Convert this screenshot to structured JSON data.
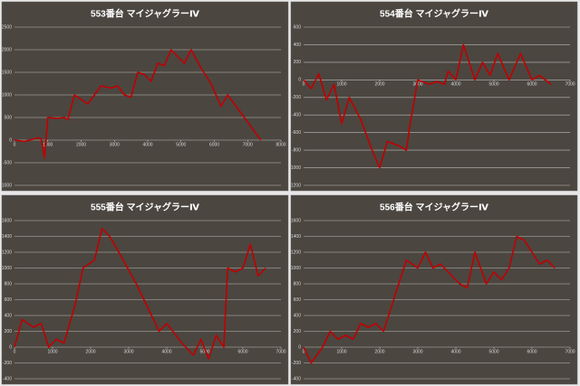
{
  "chart_data": [
    {
      "type": "line",
      "title": "553番台 マイジャグラーⅣ",
      "color": "#c00000",
      "grid": true,
      "x": [
        0,
        300,
        700,
        800,
        900,
        1000,
        1300,
        1500,
        1600,
        1800,
        2200,
        2600,
        2900,
        3100,
        3300,
        3500,
        3700,
        3900,
        4100,
        4300,
        4500,
        4700,
        5100,
        5300,
        5600,
        5900,
        6200,
        6400,
        6700,
        7000,
        7400
      ],
      "values": [
        0,
        -30,
        50,
        30,
        -400,
        500,
        480,
        500,
        450,
        1000,
        800,
        1200,
        1150,
        1200,
        1000,
        950,
        1500,
        1450,
        1300,
        1700,
        1650,
        2000,
        1700,
        2000,
        1600,
        1250,
        750,
        1000,
        700,
        400,
        0
      ],
      "xlim": [
        0,
        8000
      ],
      "xticks": [
        0,
        1000,
        2000,
        3000,
        4000,
        5000,
        6000,
        7000,
        8000
      ],
      "ylim": [
        -1000,
        2500
      ],
      "yticks": [
        -1000,
        -500,
        0,
        500,
        1000,
        1500,
        2000,
        2500
      ]
    },
    {
      "type": "line",
      "title": "554番台 マイジャグラーⅣ",
      "color": "#c00000",
      "grid": true,
      "x": [
        0,
        200,
        400,
        600,
        800,
        1000,
        1200,
        1500,
        1800,
        2000,
        2200,
        2500,
        2700,
        2800,
        3000,
        3300,
        3500,
        3700,
        3800,
        4000,
        4200,
        4500,
        4700,
        4900,
        5100,
        5400,
        5700,
        6000,
        6200,
        6500
      ],
      "values": [
        0,
        -100,
        70,
        -230,
        -50,
        -500,
        -200,
        -450,
        -800,
        -1000,
        -700,
        -750,
        -800,
        -500,
        0,
        -50,
        -20,
        -50,
        100,
        0,
        400,
        0,
        200,
        50,
        300,
        0,
        300,
        0,
        50,
        -50
      ],
      "xlim": [
        0,
        7000
      ],
      "xticks": [
        0,
        1000,
        2000,
        3000,
        4000,
        5000,
        6000,
        7000
      ],
      "ylim": [
        -1200,
        600
      ],
      "yticks": [
        -1200,
        -1000,
        -800,
        -600,
        -400,
        -200,
        0,
        200,
        400,
        600
      ]
    },
    {
      "type": "line",
      "title": "555番台 マイジャグラーⅣ",
      "color": "#c00000",
      "grid": true,
      "x": [
        0,
        200,
        500,
        700,
        900,
        1100,
        1300,
        1600,
        1800,
        2100,
        2300,
        2500,
        2800,
        3200,
        3500,
        3800,
        4000,
        4400,
        4700,
        4900,
        5100,
        5300,
        5500,
        5600,
        5800,
        6000,
        6200,
        6400,
        6600
      ],
      "values": [
        0,
        350,
        250,
        300,
        0,
        100,
        50,
        550,
        1000,
        1100,
        1500,
        1400,
        1150,
        800,
        500,
        200,
        300,
        50,
        -100,
        100,
        -150,
        150,
        0,
        1000,
        950,
        1000,
        1300,
        900,
        1000
      ],
      "xlim": [
        0,
        7000
      ],
      "xticks": [
        0,
        1000,
        2000,
        3000,
        4000,
        5000,
        6000,
        7000
      ],
      "ylim": [
        -400,
        1600
      ],
      "yticks": [
        -400,
        -200,
        0,
        200,
        400,
        600,
        800,
        1000,
        1200,
        1400,
        1600
      ]
    },
    {
      "type": "line",
      "title": "556番台 マイジャグラーⅣ",
      "color": "#c00000",
      "grid": true,
      "x": [
        0,
        200,
        500,
        700,
        900,
        1100,
        1300,
        1500,
        1700,
        1900,
        2100,
        2300,
        2500,
        2700,
        3000,
        3200,
        3400,
        3600,
        3800,
        4100,
        4300,
        4500,
        4800,
        5000,
        5200,
        5400,
        5600,
        5800,
        6000,
        6200,
        6400,
        6600
      ],
      "values": [
        0,
        -200,
        0,
        200,
        100,
        150,
        100,
        300,
        250,
        300,
        200,
        500,
        800,
        1100,
        1000,
        1200,
        1000,
        1050,
        950,
        800,
        750,
        1200,
        800,
        950,
        850,
        1000,
        1400,
        1350,
        1200,
        1050,
        1100,
        1000
      ],
      "xlim": [
        0,
        7000
      ],
      "xticks": [
        0,
        1000,
        2000,
        3000,
        4000,
        5000,
        6000,
        7000
      ],
      "ylim": [
        -400,
        1600
      ],
      "yticks": [
        -400,
        -200,
        0,
        200,
        400,
        600,
        800,
        1000,
        1200,
        1400,
        1600
      ]
    }
  ]
}
